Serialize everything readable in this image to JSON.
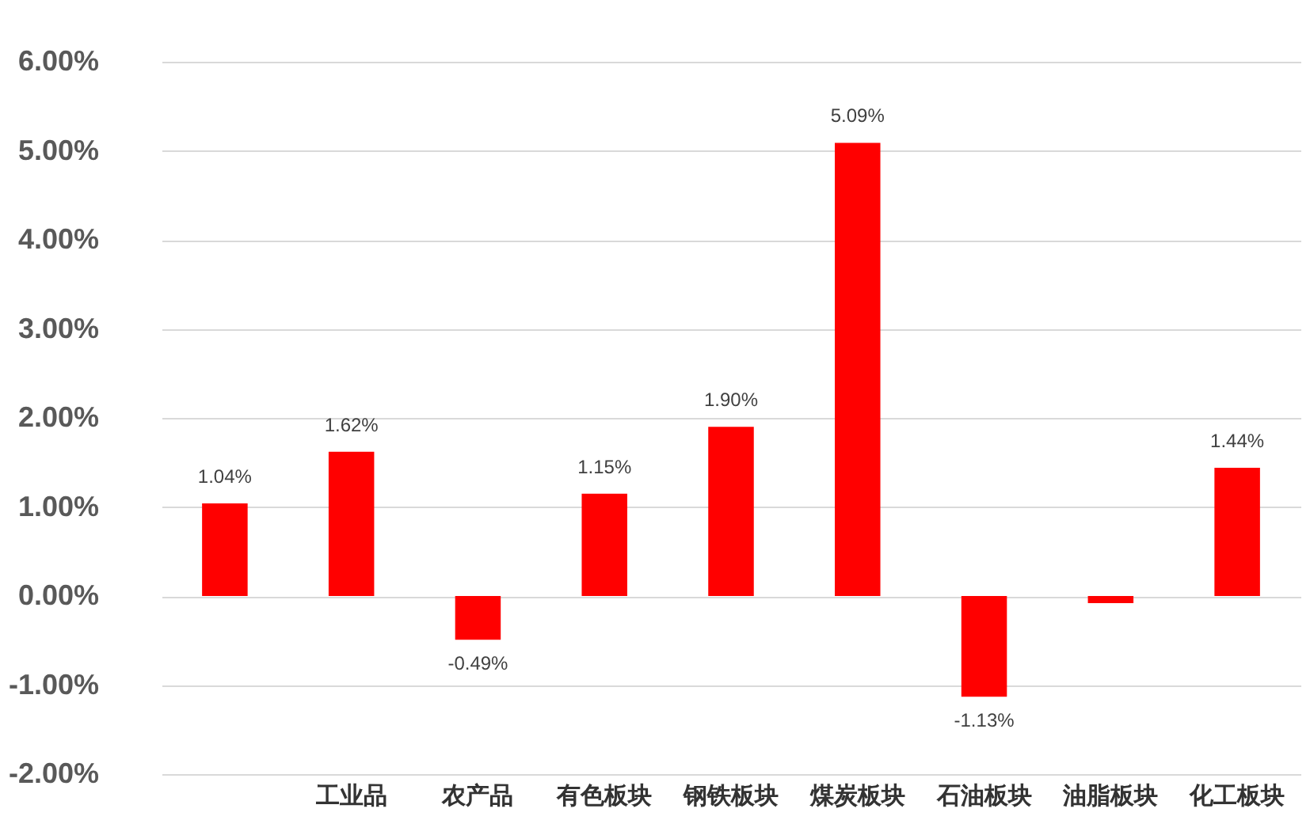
{
  "chart_data": {
    "type": "bar",
    "categories": [
      null,
      "工业品",
      "农产品",
      "有色板块",
      "钢铁板块",
      "煤炭板块",
      "石油板块",
      "油脂板块",
      "化工板块"
    ],
    "values": [
      1.04,
      1.62,
      -0.49,
      1.15,
      1.9,
      5.09,
      -1.13,
      -0.08,
      1.44
    ],
    "value_labels": [
      "1.04%",
      "1.62%",
      "-0.49%",
      "1.15%",
      "1.90%",
      "5.09%",
      "-1.13%",
      null,
      "1.44%"
    ],
    "color": "#ff0000",
    "ylim": [
      -2,
      6
    ],
    "yticks": [
      {
        "value": -2,
        "label": "-2.00%"
      },
      {
        "value": -1,
        "label": "-1.00%"
      },
      {
        "value": 0,
        "label": "0.00%"
      },
      {
        "value": 1,
        "label": "1.00%"
      },
      {
        "value": 2,
        "label": "2.00%"
      },
      {
        "value": 3,
        "label": "3.00%"
      },
      {
        "value": 4,
        "label": "4.00%"
      },
      {
        "value": 5,
        "label": "5.00%"
      },
      {
        "value": 6,
        "label": "6.00%"
      }
    ],
    "grid": true
  }
}
